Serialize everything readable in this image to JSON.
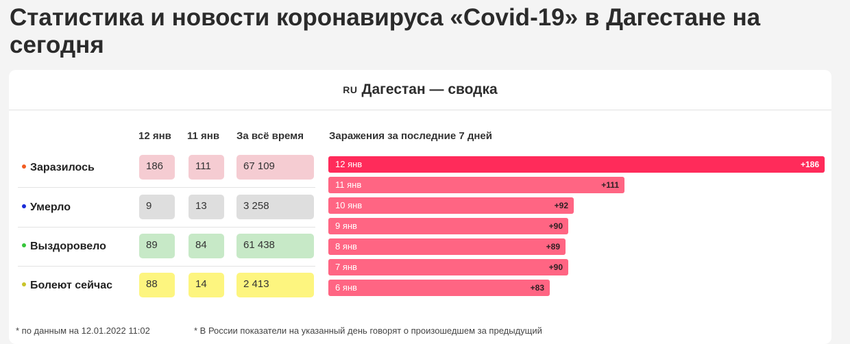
{
  "page": {
    "title": "Статистика и новости коронавируса «Covid-19» в Дагестане на сегодня"
  },
  "card": {
    "flag": "RU",
    "title": "Дагестан — сводка"
  },
  "table": {
    "columns": [
      "12 янв",
      "11 янв",
      "За всё время"
    ],
    "rows": [
      {
        "label": "Заразилось",
        "dot_color": "#f25c22",
        "bg": "red",
        "values": [
          "186",
          "111",
          "67 109"
        ]
      },
      {
        "label": "Умерло",
        "dot_color": "#1a2bd8",
        "bg": "grey",
        "values": [
          "9",
          "13",
          "3 258"
        ]
      },
      {
        "label": "Выздоровело",
        "dot_color": "#35c63a",
        "bg": "green",
        "values": [
          "89",
          "84",
          "61 438"
        ]
      },
      {
        "label": "Болеют сейчас",
        "dot_color": "#c9c42a",
        "bg": "yellow",
        "values": [
          "88",
          "14",
          "2 413"
        ]
      }
    ]
  },
  "chart_data": {
    "type": "bar",
    "title": "Заражения за последние 7 дней",
    "categories": [
      "12 янв",
      "11 янв",
      "10 янв",
      "9 янв",
      "8 янв",
      "7 янв",
      "6 янв"
    ],
    "values": [
      186,
      111,
      92,
      90,
      89,
      90,
      83
    ],
    "value_labels": [
      "+186",
      "+111",
      "+92",
      "+90",
      "+89",
      "+90",
      "+83"
    ],
    "xlim": [
      0,
      186
    ]
  },
  "footnotes": {
    "left": "* по данным на 12.01.2022 11:02",
    "right": "* В России показатели на указанный день говорят о произошедшем за предыдущий"
  }
}
